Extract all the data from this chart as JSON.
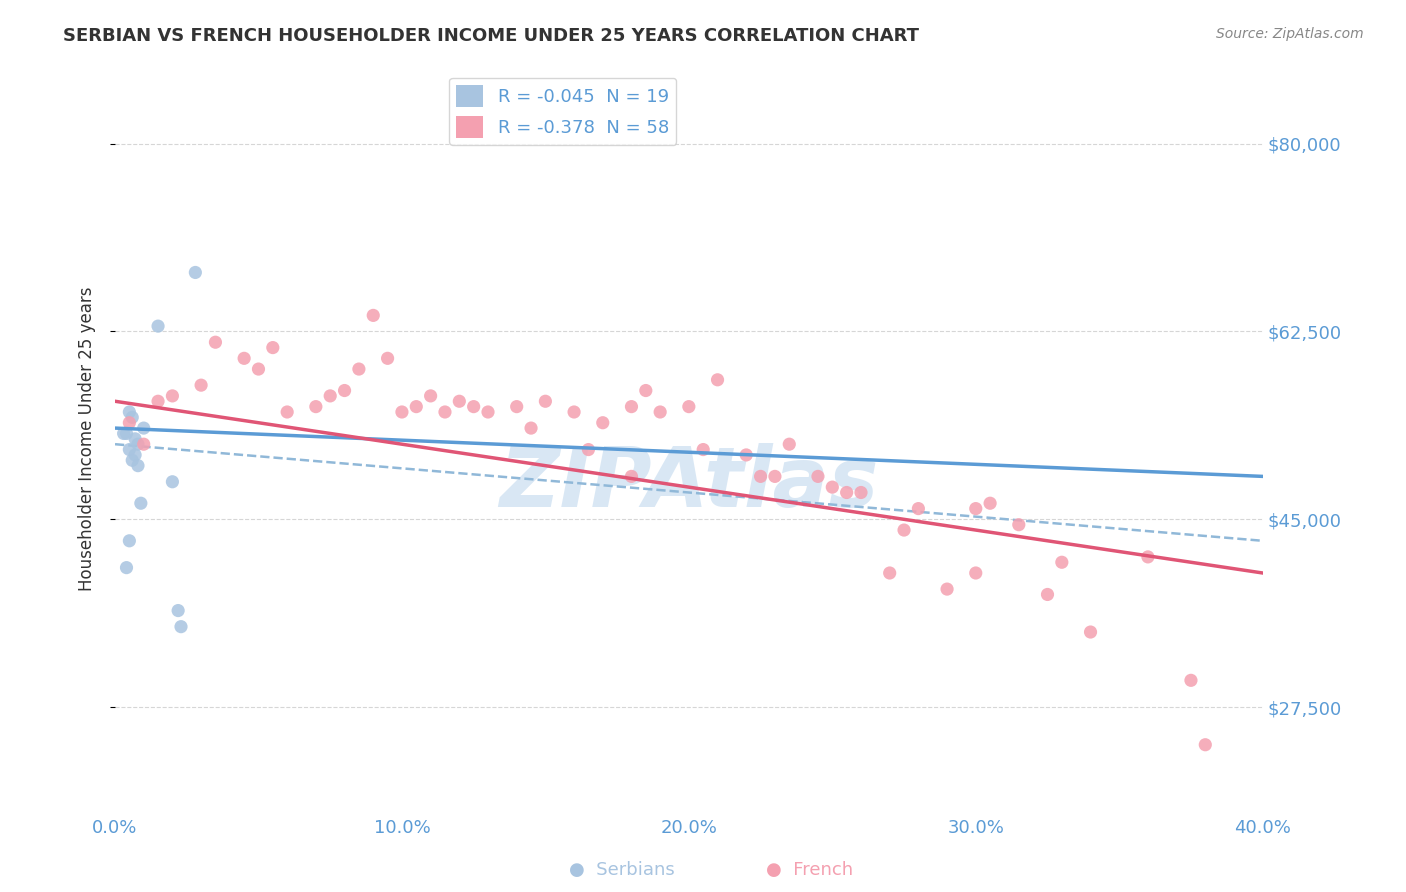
{
  "title": "SERBIAN VS FRENCH HOUSEHOLDER INCOME UNDER 25 YEARS CORRELATION CHART",
  "source": "Source: ZipAtlas.com",
  "xlabel_ticks": [
    "0.0%",
    "10.0%",
    "20.0%",
    "30.0%",
    "40.0%"
  ],
  "xlabel_values": [
    0.0,
    10.0,
    20.0,
    30.0,
    40.0
  ],
  "ylabel_ticks": [
    "$27,500",
    "$45,000",
    "$62,500",
    "$80,000"
  ],
  "ylabel_values": [
    27500,
    45000,
    62500,
    80000
  ],
  "ylabel_label": "Householder Income Under 25 years",
  "xlim": [
    0.0,
    40.0
  ],
  "ylim": [
    18000,
    87000
  ],
  "serbian_color": "#a8c4e0",
  "french_color": "#f4a0b0",
  "serbian_line_color": "#5b9bd5",
  "french_line_color": "#e05575",
  "dashed_line_color": "#90b8d8",
  "serbian_R": -0.045,
  "serbian_N": 19,
  "french_R": -0.378,
  "french_N": 58,
  "legend_label_serbian": "R = -0.045  N = 19",
  "legend_label_french": "R = -0.378  N = 58",
  "serbian_scatter_x": [
    0.5,
    1.5,
    2.8,
    0.3,
    0.6,
    1.0,
    0.4,
    0.5,
    0.7,
    0.8,
    0.6,
    0.7,
    0.8,
    0.5,
    0.4,
    2.0,
    2.2,
    2.3,
    0.9
  ],
  "serbian_scatter_y": [
    55000,
    63000,
    68000,
    53000,
    54500,
    53500,
    53000,
    51500,
    52500,
    52000,
    50500,
    51000,
    50000,
    43000,
    40500,
    48500,
    36500,
    35000,
    46500
  ],
  "french_scatter_x": [
    0.5,
    1.0,
    2.0,
    3.0,
    4.5,
    5.0,
    6.0,
    7.0,
    8.0,
    8.5,
    9.5,
    10.0,
    10.5,
    11.0,
    11.5,
    12.0,
    13.0,
    14.0,
    15.0,
    16.0,
    17.0,
    18.0,
    18.5,
    19.0,
    20.0,
    21.0,
    22.0,
    22.5,
    23.5,
    24.5,
    25.0,
    26.0,
    27.0,
    28.0,
    29.0,
    30.0,
    30.5,
    31.5,
    32.5,
    33.0,
    34.0,
    36.0,
    37.5,
    1.5,
    3.5,
    5.5,
    7.5,
    9.0,
    12.5,
    14.5,
    16.5,
    18.0,
    20.5,
    23.0,
    25.5,
    27.5,
    30.0,
    38.0
  ],
  "french_scatter_y": [
    54000,
    52000,
    56500,
    57500,
    60000,
    59000,
    55000,
    55500,
    57000,
    59000,
    60000,
    55000,
    55500,
    56500,
    55000,
    56000,
    55000,
    55500,
    56000,
    55000,
    54000,
    55500,
    57000,
    55000,
    55500,
    58000,
    51000,
    49000,
    52000,
    49000,
    48000,
    47500,
    40000,
    46000,
    38500,
    46000,
    46500,
    44500,
    38000,
    41000,
    34500,
    41500,
    30000,
    56000,
    61500,
    61000,
    56500,
    64000,
    55500,
    53500,
    51500,
    49000,
    51500,
    49000,
    47500,
    44000,
    40000,
    24000
  ],
  "serbian_line_x0": 0.0,
  "serbian_line_y0": 53500,
  "serbian_line_x1": 40.0,
  "serbian_line_y1": 49000,
  "french_line_x0": 0.0,
  "french_line_y0": 56000,
  "french_line_x1": 40.0,
  "french_line_y1": 40000,
  "dashed_line_x0": 0.0,
  "dashed_line_y0": 52000,
  "dashed_line_x1": 40.0,
  "dashed_line_y1": 43000,
  "title_color": "#333333",
  "tick_label_color": "#5b9bd5",
  "grid_color": "#cccccc",
  "watermark_text": "ZIPAtlas",
  "watermark_color": "#c0d8ee",
  "background_color": "#ffffff"
}
